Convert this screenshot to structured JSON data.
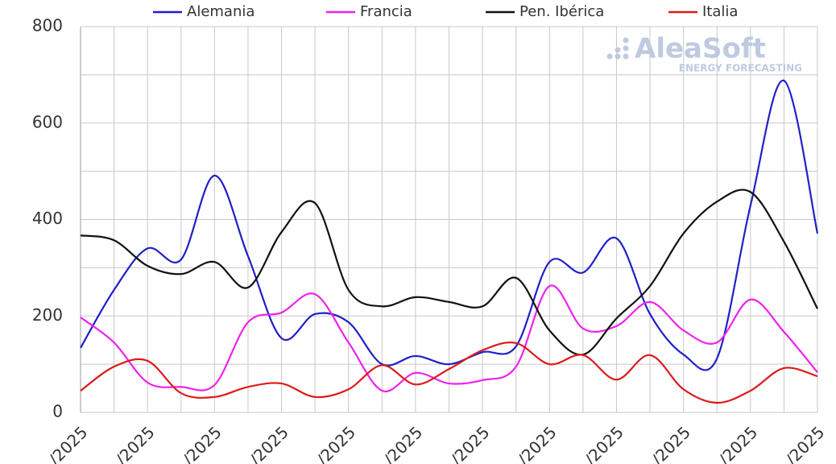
{
  "chart_data": {
    "type": "line",
    "watermark": {
      "title": "AleaSoft",
      "subtitle": "ENERGY FORECASTING"
    },
    "categories": [
      "/2025",
      null,
      "/2025",
      null,
      "/2025",
      null,
      "/2025",
      null,
      "/2025",
      null,
      "/2025",
      null,
      "/2025",
      null,
      "/2025",
      null,
      "/2025",
      null,
      "/2025",
      null,
      "/2025",
      null,
      "/2025"
    ],
    "series": [
      {
        "name": "Alemania",
        "color": "#1f1fc8",
        "values": [
          134,
          254,
          340,
          317,
          491,
          324,
          154,
          204,
          187,
          100,
          117,
          100,
          125,
          137,
          312,
          290,
          361,
          204,
          120,
          112,
          429,
          688,
          371
        ]
      },
      {
        "name": "Francia",
        "color": "#ee22ee",
        "values": [
          197,
          145,
          62,
          53,
          57,
          187,
          207,
          245,
          145,
          45,
          82,
          60,
          67,
          95,
          262,
          174,
          179,
          229,
          170,
          145,
          234,
          167,
          83
        ]
      },
      {
        "name": "Pen. Ibérica",
        "color": "#111111",
        "values": [
          367,
          357,
          304,
          287,
          312,
          259,
          374,
          434,
          254,
          220,
          239,
          229,
          220,
          279,
          170,
          120,
          195,
          262,
          371,
          437,
          457,
          354,
          215
        ]
      },
      {
        "name": "Italia",
        "color": "#dd1a1a",
        "values": [
          45,
          95,
          107,
          40,
          32,
          53,
          60,
          32,
          48,
          98,
          58,
          90,
          129,
          144,
          100,
          119,
          68,
          119,
          48,
          20,
          45,
          92,
          75
        ]
      }
    ],
    "ylim": [
      0,
      800
    ],
    "yticks": [
      0,
      200,
      400,
      600,
      800
    ],
    "yminorticks": [
      100,
      300,
      500,
      700
    ],
    "grid": true,
    "legend": "top"
  }
}
